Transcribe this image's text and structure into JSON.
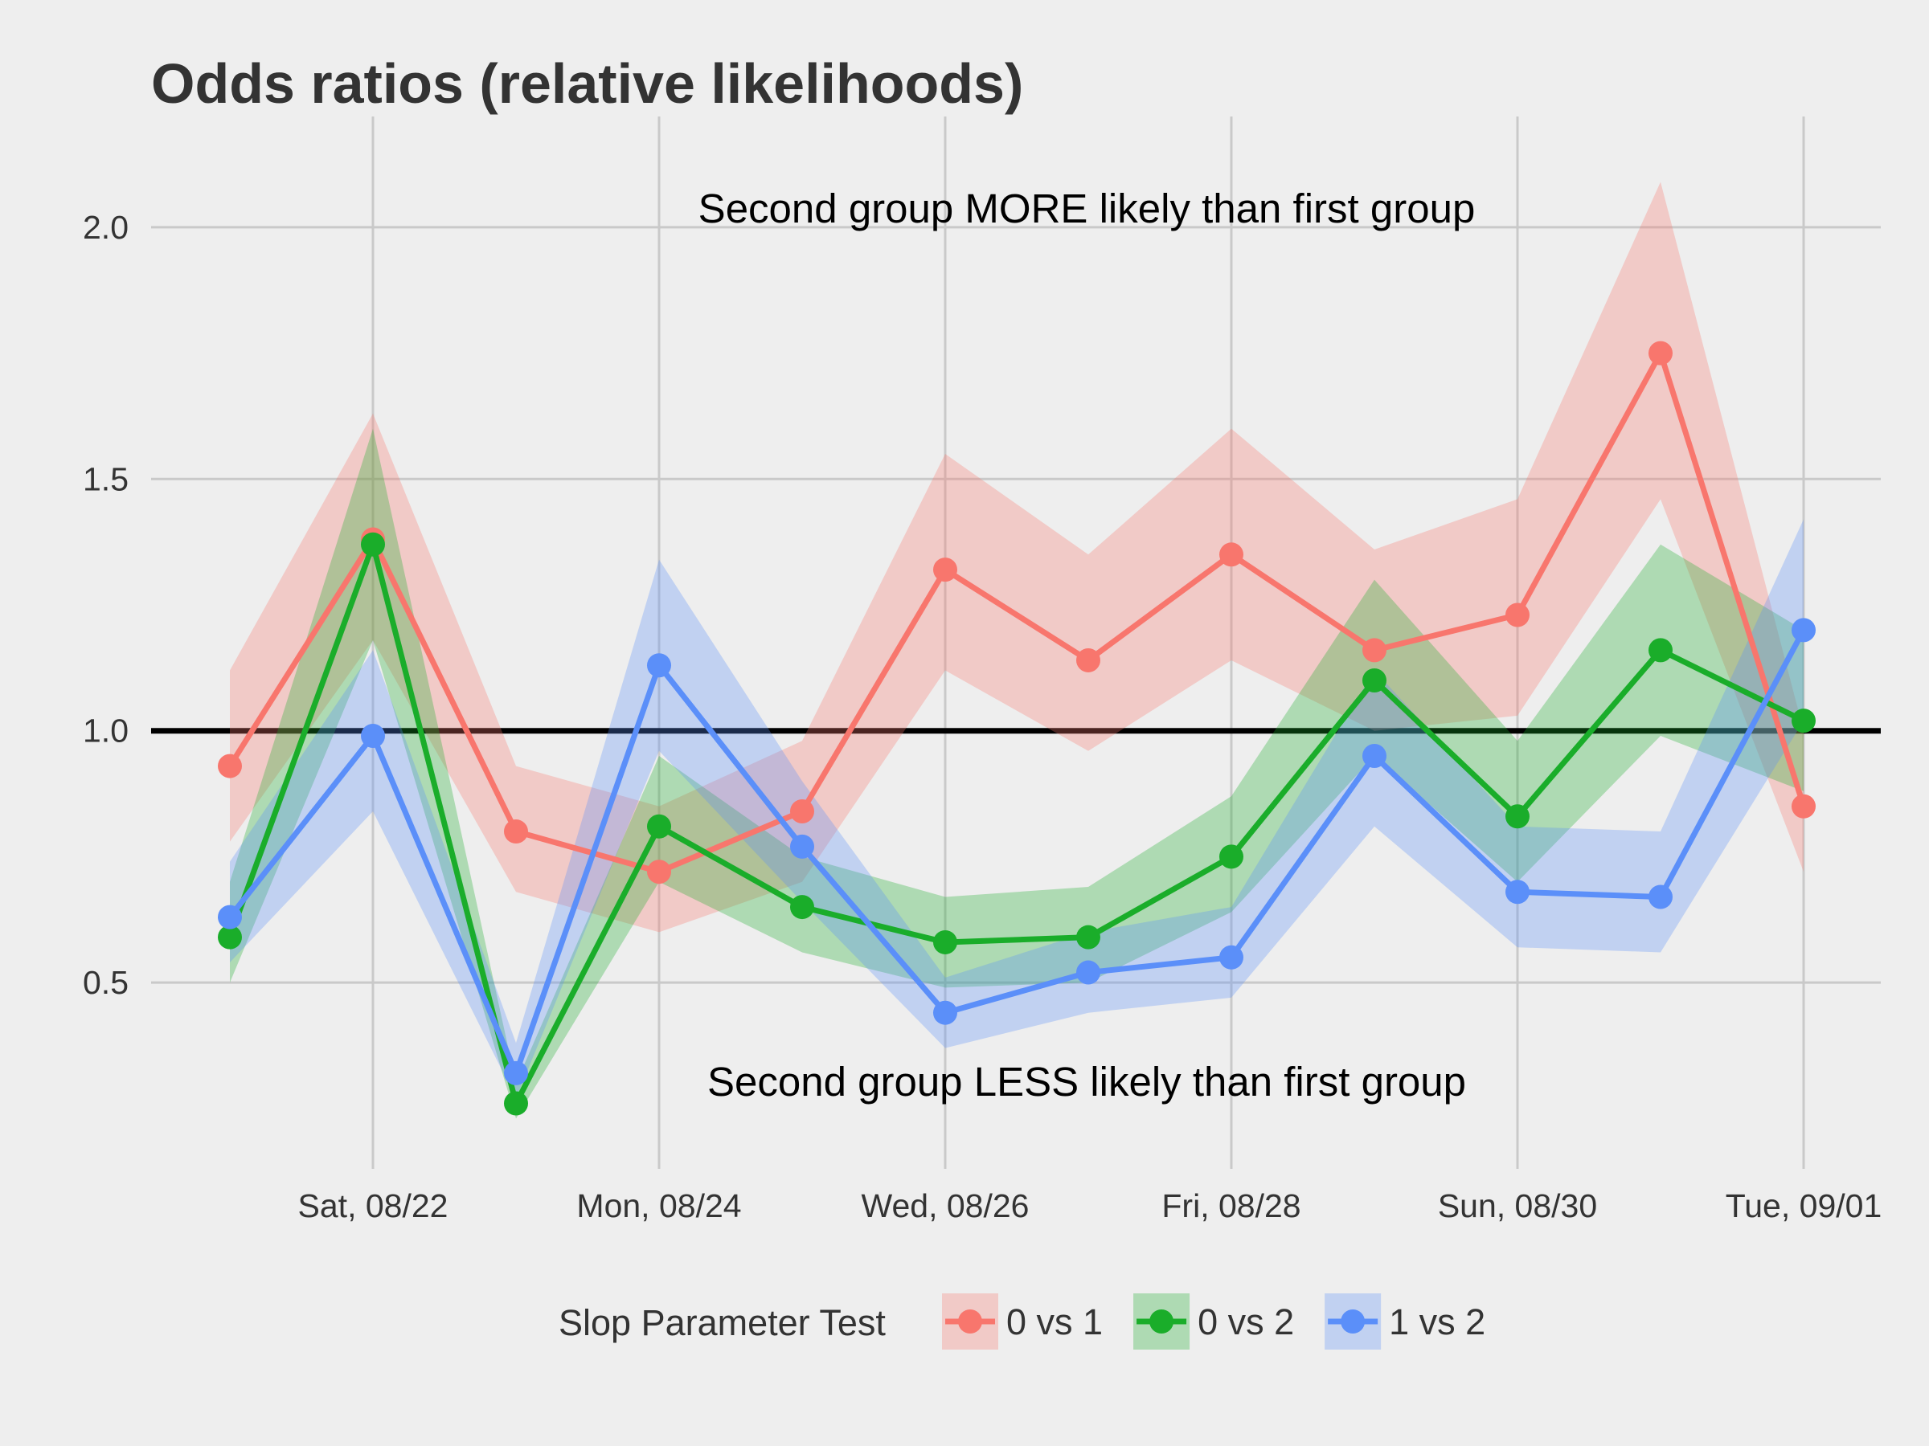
{
  "chart_data": {
    "type": "line",
    "title": "Odds ratios (relative likelihoods)",
    "xlabel": "",
    "ylabel": "",
    "x": [
      "08/21",
      "08/22",
      "08/23",
      "08/24",
      "08/25",
      "08/26",
      "08/27",
      "08/28",
      "08/29",
      "08/30",
      "08/31",
      "09/01"
    ],
    "x_tick_labels": [
      {
        "date": "08/22",
        "label": "Sat, 08/22"
      },
      {
        "date": "08/24",
        "label": "Mon, 08/24"
      },
      {
        "date": "08/26",
        "label": "Wed, 08/26"
      },
      {
        "date": "08/28",
        "label": "Fri, 08/28"
      },
      {
        "date": "08/30",
        "label": "Sun, 08/30"
      },
      {
        "date": "09/01",
        "label": "Tue, 09/01"
      }
    ],
    "y_ticks": [
      0.5,
      1.0,
      1.5,
      2.0
    ],
    "y_tick_labels": [
      "0.5",
      "1.0",
      "1.5",
      "2.0"
    ],
    "ylim": [
      0.13,
      2.22
    ],
    "reference_line": 1.0,
    "grid": true,
    "annotations": {
      "upper": "Second group MORE likely than first group",
      "lower": "Second group LESS likely than first group"
    },
    "legend": {
      "title": "Slop Parameter Test",
      "placement": "bottom"
    },
    "series": [
      {
        "name": "0 vs 1",
        "color": "#f8766d",
        "values": [
          0.93,
          1.38,
          0.8,
          0.72,
          0.84,
          1.32,
          1.14,
          1.35,
          1.16,
          1.23,
          1.75,
          0.85
        ],
        "lower": [
          0.78,
          1.18,
          0.68,
          0.6,
          0.7,
          1.12,
          0.96,
          1.14,
          1.0,
          1.03,
          1.46,
          0.72
        ],
        "upper": [
          1.12,
          1.63,
          0.93,
          0.85,
          0.98,
          1.55,
          1.35,
          1.6,
          1.36,
          1.46,
          2.09,
          1.0
        ]
      },
      {
        "name": "0 vs 2",
        "color": "#1aad2a",
        "values": [
          0.59,
          1.37,
          0.26,
          0.81,
          0.65,
          0.58,
          0.59,
          0.75,
          1.1,
          0.83,
          1.16,
          1.02
        ],
        "lower": [
          0.5,
          1.18,
          0.23,
          0.7,
          0.56,
          0.49,
          0.5,
          0.64,
          0.95,
          0.7,
          0.99,
          0.88
        ],
        "upper": [
          0.7,
          1.6,
          0.3,
          0.95,
          0.75,
          0.67,
          0.69,
          0.87,
          1.3,
          0.98,
          1.37,
          1.2
        ]
      },
      {
        "name": "1 vs 2",
        "color": "#5b8ff9",
        "values": [
          0.63,
          0.99,
          0.32,
          1.13,
          0.77,
          0.44,
          0.52,
          0.55,
          0.95,
          0.68,
          0.67,
          1.2
        ],
        "lower": [
          0.54,
          0.84,
          0.27,
          0.96,
          0.66,
          0.37,
          0.44,
          0.47,
          0.81,
          0.57,
          0.56,
          1.02
        ],
        "upper": [
          0.74,
          1.16,
          0.38,
          1.34,
          0.9,
          0.51,
          0.6,
          0.65,
          1.12,
          0.81,
          0.8,
          1.42
        ]
      }
    ]
  }
}
